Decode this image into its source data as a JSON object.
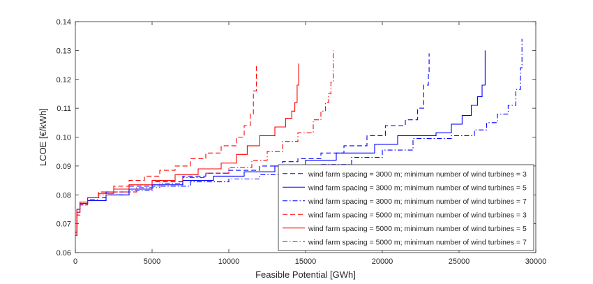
{
  "chart_data": {
    "type": "line",
    "title": "",
    "xlabel": "Feasible Potential [GWh]",
    "ylabel": "LCOE [€/kWh]",
    "xlim": [
      0,
      30000
    ],
    "ylim": [
      0.06,
      0.14
    ],
    "xticks": [
      0,
      5000,
      10000,
      15000,
      20000,
      25000,
      30000
    ],
    "xtick_labels": [
      "0",
      "5000",
      "10000",
      "15000",
      "20000",
      "25000",
      "30000"
    ],
    "yticks": [
      0.06,
      0.07,
      0.08,
      0.09,
      0.1,
      0.11,
      0.12,
      0.13,
      0.14
    ],
    "ytick_labels": [
      "0.06",
      "0.07",
      "0.08",
      "0.09",
      "0.10",
      "0.11",
      "0.12",
      "0.13",
      "0.14"
    ],
    "grid": false,
    "legend_position": "bottom-right",
    "colors": {
      "blue": "#0000ff",
      "red": "#ff0000",
      "axis": "#262626"
    },
    "series": [
      {
        "name": "wind farm spacing = 3000 m; minimum number of wind turbines = 3",
        "color": "#0000ff",
        "style": "dashed",
        "points": [
          [
            0,
            0.067
          ],
          [
            100,
            0.075
          ],
          [
            300,
            0.0775
          ],
          [
            800,
            0.079
          ],
          [
            2000,
            0.081
          ],
          [
            3500,
            0.083
          ],
          [
            5000,
            0.0845
          ],
          [
            7000,
            0.0865
          ],
          [
            8500,
            0.0875
          ],
          [
            10000,
            0.0885
          ],
          [
            12000,
            0.09
          ],
          [
            13500,
            0.0915
          ],
          [
            14500,
            0.0925
          ],
          [
            16000,
            0.0945
          ],
          [
            17500,
            0.097
          ],
          [
            19000,
            0.1005
          ],
          [
            20200,
            0.104
          ],
          [
            21500,
            0.106
          ],
          [
            22300,
            0.11
          ],
          [
            22700,
            0.118
          ],
          [
            23000,
            0.122
          ],
          [
            23050,
            0.129
          ]
        ]
      },
      {
        "name": "wind farm spacing = 3000 m; minimum number of wind turbines = 5",
        "color": "#0000ff",
        "style": "solid",
        "points": [
          [
            0,
            0.067
          ],
          [
            100,
            0.074
          ],
          [
            300,
            0.077
          ],
          [
            800,
            0.078
          ],
          [
            2000,
            0.08
          ],
          [
            3500,
            0.082
          ],
          [
            5000,
            0.0835
          ],
          [
            7000,
            0.085
          ],
          [
            9000,
            0.0865
          ],
          [
            11000,
            0.088
          ],
          [
            13000,
            0.09
          ],
          [
            15000,
            0.092
          ],
          [
            17000,
            0.0945
          ],
          [
            19500,
            0.0975
          ],
          [
            21000,
            0.1005
          ],
          [
            23500,
            0.1015
          ],
          [
            24500,
            0.1045
          ],
          [
            25200,
            0.1075
          ],
          [
            25800,
            0.111
          ],
          [
            26200,
            0.114
          ],
          [
            26500,
            0.118
          ],
          [
            26700,
            0.13
          ]
        ]
      },
      {
        "name": "wind farm spacing = 3000 m; minimum number of wind turbines = 7",
        "color": "#0000ff",
        "style": "dashdot",
        "points": [
          [
            0,
            0.067
          ],
          [
            100,
            0.074
          ],
          [
            300,
            0.0765
          ],
          [
            800,
            0.078
          ],
          [
            2000,
            0.08
          ],
          [
            3500,
            0.0815
          ],
          [
            5000,
            0.083
          ],
          [
            7500,
            0.0845
          ],
          [
            10000,
            0.0855
          ],
          [
            12000,
            0.087
          ],
          [
            14000,
            0.089
          ],
          [
            16000,
            0.0905
          ],
          [
            18000,
            0.093
          ],
          [
            20000,
            0.0955
          ],
          [
            22000,
            0.0995
          ],
          [
            24500,
            0.1005
          ],
          [
            26000,
            0.1025
          ],
          [
            26800,
            0.105
          ],
          [
            27500,
            0.108
          ],
          [
            28200,
            0.111
          ],
          [
            28700,
            0.1165
          ],
          [
            29000,
            0.124
          ],
          [
            29100,
            0.134
          ]
        ]
      },
      {
        "name": "wind farm spacing = 5000 m; minimum number of wind turbines = 3",
        "color": "#ff0000",
        "style": "dashed",
        "points": [
          [
            0,
            0.066
          ],
          [
            100,
            0.075
          ],
          [
            300,
            0.0775
          ],
          [
            800,
            0.079
          ],
          [
            1500,
            0.081
          ],
          [
            2500,
            0.083
          ],
          [
            3500,
            0.085
          ],
          [
            4500,
            0.0865
          ],
          [
            5500,
            0.0885
          ],
          [
            6500,
            0.09
          ],
          [
            7500,
            0.0925
          ],
          [
            8500,
            0.0945
          ],
          [
            9500,
            0.097
          ],
          [
            10500,
            0.1
          ],
          [
            11000,
            0.104
          ],
          [
            11400,
            0.108
          ],
          [
            11600,
            0.116
          ],
          [
            11800,
            0.1255
          ]
        ]
      },
      {
        "name": "wind farm spacing = 5000 m; minimum number of wind turbines = 5",
        "color": "#ff0000",
        "style": "solid",
        "points": [
          [
            0,
            0.066
          ],
          [
            100,
            0.074
          ],
          [
            300,
            0.0775
          ],
          [
            800,
            0.079
          ],
          [
            1500,
            0.0805
          ],
          [
            2500,
            0.082
          ],
          [
            3500,
            0.0835
          ],
          [
            5000,
            0.085
          ],
          [
            6500,
            0.087
          ],
          [
            8000,
            0.089
          ],
          [
            9500,
            0.091
          ],
          [
            10500,
            0.094
          ],
          [
            11200,
            0.097
          ],
          [
            12000,
            0.1005
          ],
          [
            13000,
            0.1035
          ],
          [
            13700,
            0.1065
          ],
          [
            14100,
            0.109
          ],
          [
            14300,
            0.112
          ],
          [
            14450,
            0.118
          ],
          [
            14550,
            0.1255
          ]
        ]
      },
      {
        "name": "wind farm spacing = 5000 m; minimum number of wind turbines = 7",
        "color": "#ff0000",
        "style": "dashdot",
        "points": [
          [
            0,
            0.066
          ],
          [
            100,
            0.073
          ],
          [
            300,
            0.0765
          ],
          [
            800,
            0.0785
          ],
          [
            1500,
            0.08
          ],
          [
            2500,
            0.081
          ],
          [
            4000,
            0.0825
          ],
          [
            5500,
            0.084
          ],
          [
            7000,
            0.086
          ],
          [
            8500,
            0.0875
          ],
          [
            10000,
            0.0895
          ],
          [
            11500,
            0.092
          ],
          [
            12500,
            0.095
          ],
          [
            13500,
            0.0985
          ],
          [
            14500,
            0.1015
          ],
          [
            15500,
            0.106
          ],
          [
            16000,
            0.109
          ],
          [
            16300,
            0.112
          ],
          [
            16500,
            0.115
          ],
          [
            16650,
            0.119
          ],
          [
            16800,
            0.13
          ]
        ]
      }
    ]
  }
}
